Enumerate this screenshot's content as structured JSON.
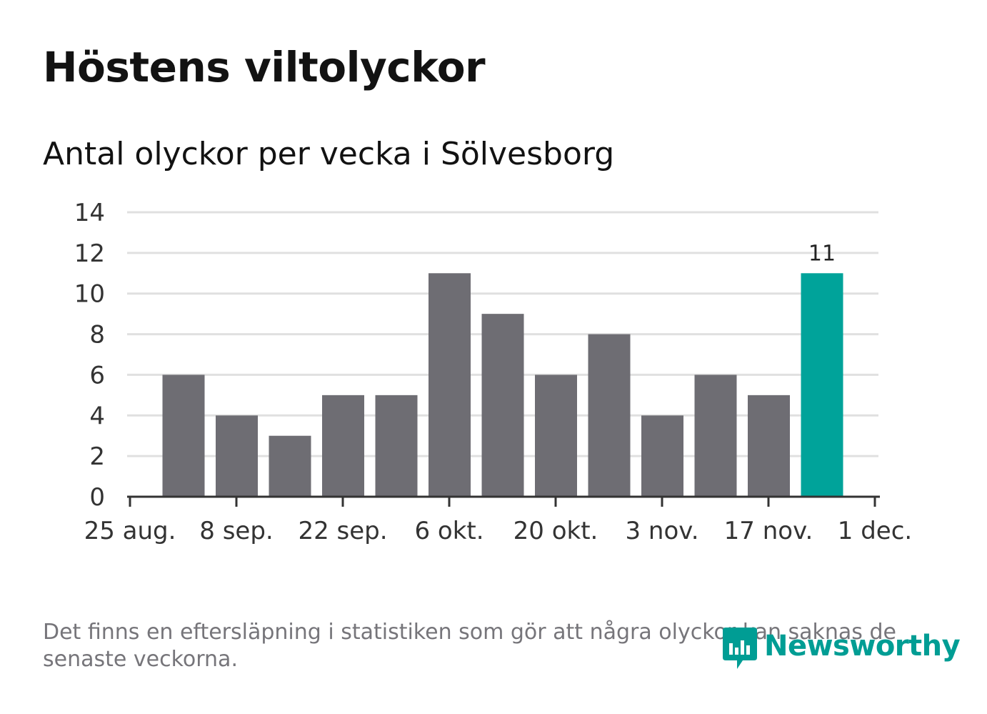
{
  "header": {
    "title": "Höstens viltolyckor",
    "subtitle": "Antal olyckor per vecka i Sölvesborg"
  },
  "chart_data": {
    "type": "bar",
    "title": "Höstens viltolyckor",
    "subtitle": "Antal olyckor per vecka i Sölvesborg",
    "xlabel": "",
    "ylabel": "",
    "x_tick_labels": [
      "25 aug.",
      "8 sep.",
      "22 sep.",
      "6 okt.",
      "20 okt.",
      "3 nov.",
      "17 nov.",
      "1 dec."
    ],
    "y_ticks": [
      0,
      2,
      4,
      6,
      8,
      10,
      12,
      14
    ],
    "ylim": [
      0,
      14
    ],
    "grid": true,
    "values": [
      6,
      4,
      3,
      5,
      5,
      11,
      9,
      6,
      8,
      4,
      6,
      5,
      11
    ],
    "highlight_index": 12,
    "highlight_label": "11",
    "colors": {
      "bar": "#6e6d73",
      "highlight": "#00a39a",
      "grid": "#e0e0e0",
      "axis": "#333333",
      "text": "#333333"
    }
  },
  "footer": {
    "note": "Det finns en eftersläpning i statistiken som gör att några olyckor kan saknas de senaste veckorna.",
    "brand": "Newsworthy",
    "brand_icon": "chart-bubble-icon",
    "brand_color": "#009d94"
  }
}
